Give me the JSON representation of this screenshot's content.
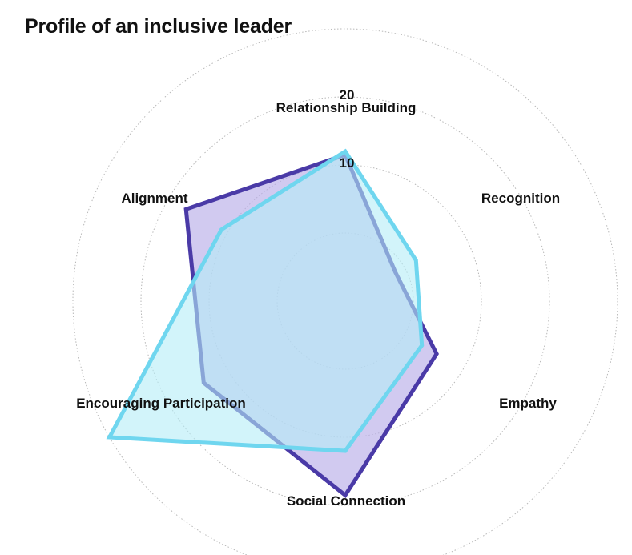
{
  "title": "Profile of an inclusive leader",
  "chart_data": {
    "type": "radar",
    "axes": [
      "Relationship Building",
      "Recognition",
      "Empathy",
      "Social Connection",
      "Encouraging Participation",
      "Alignment"
    ],
    "tick_labels": [
      "10",
      "20"
    ],
    "range": [
      -10,
      30
    ],
    "grid": "dotted circles",
    "series": [
      {
        "values": [
          11.5,
          -1.5,
          5.5,
          18.5,
          14,
          17
        ],
        "color": "#4a3aa7",
        "fill": "#b9aee8"
      },
      {
        "values": [
          12,
          2,
          3,
          12,
          30,
          11
        ],
        "color": "#6fd6ef",
        "fill": "#b4ecf6"
      }
    ]
  }
}
